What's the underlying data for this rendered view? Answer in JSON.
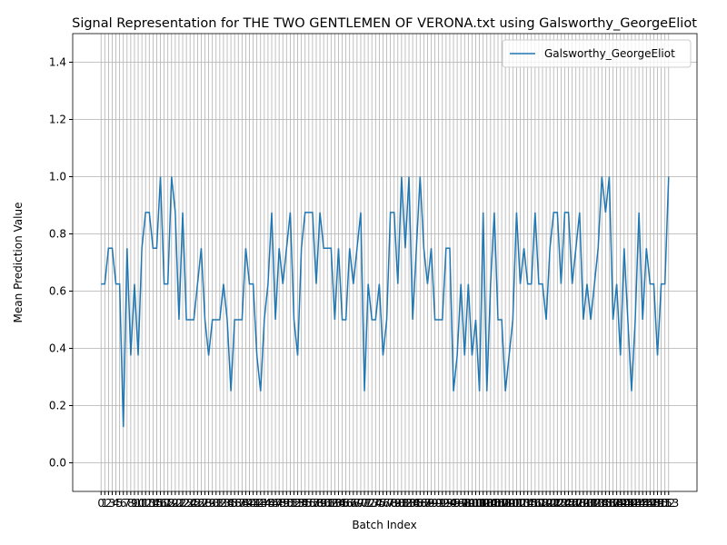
{
  "chart_data": {
    "type": "line",
    "title": "Signal Representation for THE TWO GENTLEMEN OF VERONA.txt using Galsworthy_GeorgeEliot",
    "x_label": "Batch Index",
    "y_label": "Mean Prediction Value",
    "x": [
      0,
      1,
      2,
      3,
      4,
      5,
      6,
      7,
      8,
      9,
      10,
      11,
      12,
      13,
      14,
      15,
      16,
      17,
      18,
      19,
      20,
      21,
      22,
      23,
      24,
      25,
      26,
      27,
      28,
      29,
      30,
      31,
      32,
      33,
      34,
      35,
      36,
      37,
      38,
      39,
      40,
      41,
      42,
      43,
      44,
      45,
      46,
      47,
      48,
      49,
      50,
      51,
      52,
      53,
      54,
      55,
      56,
      57,
      58,
      59,
      60,
      61,
      62,
      63,
      64,
      65,
      66,
      67,
      68,
      69,
      70,
      71,
      72,
      73,
      74,
      75,
      76,
      77,
      78,
      79,
      80,
      81,
      82,
      83,
      84,
      85,
      86,
      87,
      88,
      89,
      90,
      91,
      92,
      93,
      94,
      95,
      96,
      97,
      98,
      99,
      100,
      101,
      102,
      103,
      104,
      105,
      106,
      107,
      108,
      109,
      110,
      111,
      112,
      113,
      114,
      115,
      116,
      117,
      118,
      119,
      120,
      121,
      122,
      123,
      124,
      125,
      126,
      127,
      128,
      129,
      130,
      131,
      132,
      133,
      134,
      135,
      136,
      137,
      138,
      139,
      140,
      141,
      142,
      143,
      144,
      145,
      146,
      147,
      148,
      149,
      150,
      151,
      152,
      153
    ],
    "series": [
      {
        "name": "Galsworthy_GeorgeEliot",
        "color": "#1f77b4",
        "values": [
          0.625,
          0.625,
          0.75,
          0.75,
          0.625,
          0.625,
          0.125,
          0.75,
          0.375,
          0.625,
          0.375,
          0.75,
          0.875,
          0.875,
          0.75,
          0.75,
          1.0,
          0.625,
          0.625,
          1.0,
          0.875,
          0.5,
          0.875,
          0.5,
          0.5,
          0.5,
          0.625,
          0.75,
          0.5,
          0.375,
          0.5,
          0.5,
          0.5,
          0.625,
          0.5,
          0.25,
          0.5,
          0.5,
          0.5,
          0.75,
          0.625,
          0.625,
          0.375,
          0.25,
          0.5,
          0.625,
          0.875,
          0.5,
          0.75,
          0.625,
          0.75,
          0.875,
          0.5,
          0.375,
          0.75,
          0.875,
          0.875,
          0.875,
          0.625,
          0.875,
          0.75,
          0.75,
          0.75,
          0.5,
          0.75,
          0.5,
          0.5,
          0.75,
          0.625,
          0.75,
          0.875,
          0.25,
          0.625,
          0.5,
          0.5,
          0.625,
          0.375,
          0.5,
          0.875,
          0.875,
          0.625,
          1.0,
          0.75,
          1.0,
          0.5,
          0.75,
          1.0,
          0.75,
          0.625,
          0.75,
          0.5,
          0.5,
          0.5,
          0.75,
          0.75,
          0.25,
          0.375,
          0.625,
          0.375,
          0.625,
          0.375,
          0.5,
          0.25,
          0.875,
          0.25,
          0.625,
          0.875,
          0.5,
          0.5,
          0.25,
          0.375,
          0.5,
          0.875,
          0.625,
          0.75,
          0.625,
          0.625,
          0.875,
          0.625,
          0.625,
          0.5,
          0.75,
          0.875,
          0.875,
          0.625,
          0.875,
          0.875,
          0.625,
          0.75,
          0.875,
          0.5,
          0.625,
          0.5,
          0.625,
          0.75,
          1.0,
          0.875,
          1.0,
          0.5,
          0.625,
          0.375,
          0.75,
          0.5,
          0.25,
          0.5,
          0.875,
          0.5,
          0.75,
          0.625,
          0.625,
          0.375,
          0.625,
          0.625,
          1.0
        ]
      }
    ],
    "xlim": [
      -7.65,
      160.65
    ],
    "ylim": [
      -0.1,
      1.5
    ],
    "xticks": [
      0,
      1,
      2,
      3,
      4,
      5,
      6,
      7,
      8,
      9,
      10,
      11,
      12,
      13,
      14,
      15,
      16,
      17,
      18,
      19,
      20,
      21,
      22,
      23,
      24,
      25,
      26,
      27,
      28,
      29,
      30,
      31,
      32,
      33,
      34,
      35,
      36,
      37,
      38,
      39,
      40,
      41,
      42,
      43,
      44,
      45,
      46,
      47,
      48,
      49,
      50,
      51,
      52,
      53,
      54,
      55,
      56,
      57,
      58,
      59,
      60,
      61,
      62,
      63,
      64,
      65,
      66,
      67,
      68,
      69,
      70,
      71,
      72,
      73,
      74,
      75,
      76,
      77,
      78,
      79,
      80,
      81,
      82,
      83,
      84,
      85,
      86,
      87,
      88,
      89,
      90,
      91,
      92,
      93,
      94,
      95,
      96,
      97,
      98,
      99,
      100,
      101,
      102,
      103,
      104,
      105,
      106,
      107,
      108,
      109,
      110,
      111,
      112,
      113,
      114,
      115,
      116,
      117,
      118,
      119,
      120,
      121,
      122,
      123,
      124,
      125,
      126,
      127,
      128,
      129,
      130,
      131,
      132,
      133,
      134,
      135,
      136,
      137,
      138,
      139,
      140,
      141,
      142,
      143,
      144,
      145,
      146,
      147,
      148,
      149,
      150,
      151,
      152,
      153
    ],
    "yticks": [
      {
        "value": 0,
        "label": "0.0"
      },
      0.2,
      0.4,
      0.6,
      0.8,
      {
        "value": 1,
        "label": "1.0"
      },
      1.2,
      1.4
    ],
    "grid": true,
    "legend": "upper right"
  }
}
